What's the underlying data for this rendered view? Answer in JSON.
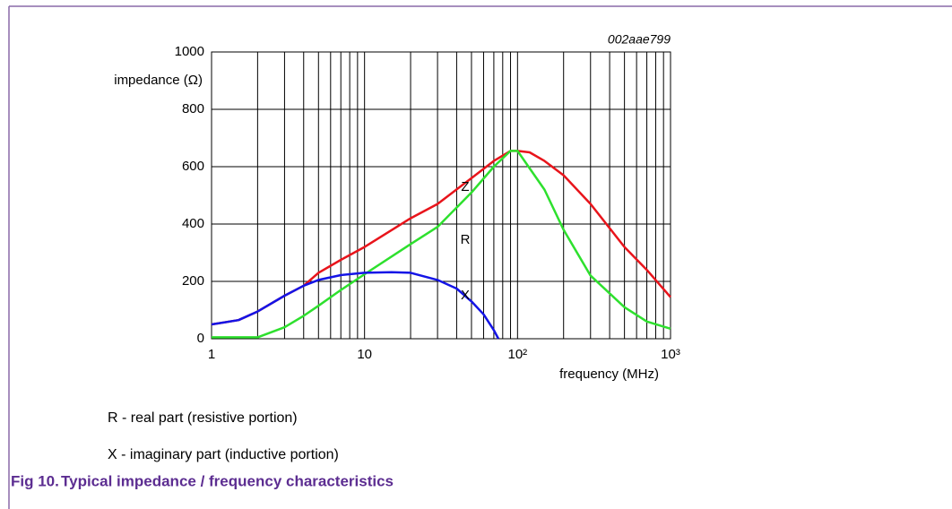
{
  "chart_data": {
    "type": "line",
    "code": "002aae799",
    "y_label": "impedance (Ω)",
    "x_label": "frequency (MHz)",
    "xscale": "log",
    "xlim": [
      1,
      1000
    ],
    "ylim": [
      0,
      1000
    ],
    "xticks": [
      1,
      10,
      {
        "value": 100,
        "label": "10²"
      },
      {
        "value": 1000,
        "label": "10³"
      }
    ],
    "xminorticks": [
      2,
      3,
      4,
      5,
      6,
      7,
      8,
      9,
      20,
      30,
      40,
      50,
      60,
      70,
      80,
      90,
      200,
      300,
      400,
      500,
      600,
      700,
      800,
      900
    ],
    "yticks": [
      0,
      200,
      400,
      600,
      800,
      1000
    ],
    "grid": true,
    "series": [
      {
        "name": "Z",
        "color": "#e8141b",
        "x": [
          1,
          1.5,
          2,
          3,
          4,
          5,
          7,
          10,
          20,
          30,
          50,
          70,
          90,
          100,
          120,
          150,
          200,
          300,
          500,
          700,
          1000
        ],
        "values": [
          50,
          65,
          95,
          150,
          185,
          230,
          275,
          320,
          420,
          470,
          560,
          620,
          655,
          655,
          650,
          620,
          570,
          470,
          320,
          240,
          145
        ]
      },
      {
        "name": "R",
        "color": "#2ee02e",
        "x": [
          1,
          2,
          3,
          4,
          5,
          7,
          10,
          20,
          30,
          50,
          70,
          90,
          100,
          150,
          200,
          300,
          500,
          700,
          1000
        ],
        "values": [
          5,
          5,
          40,
          80,
          115,
          170,
          225,
          330,
          390,
          510,
          600,
          655,
          655,
          520,
          380,
          220,
          110,
          60,
          35
        ]
      },
      {
        "name": "X",
        "color": "#1414e6",
        "x": [
          1,
          1.5,
          2,
          3,
          4,
          5,
          7,
          10,
          15,
          20,
          30,
          40,
          50,
          60,
          70,
          75
        ],
        "values": [
          50,
          65,
          95,
          150,
          185,
          205,
          222,
          230,
          232,
          230,
          205,
          175,
          130,
          85,
          30,
          0
        ]
      }
    ],
    "annotations": [
      "Z",
      "R",
      "X"
    ]
  },
  "notes": [
    "R - real part (resistive portion)",
    "X - imaginary part (inductive portion)"
  ],
  "caption": {
    "label": "Fig 10.",
    "text": "Typical impedance / frequency characteristics"
  }
}
